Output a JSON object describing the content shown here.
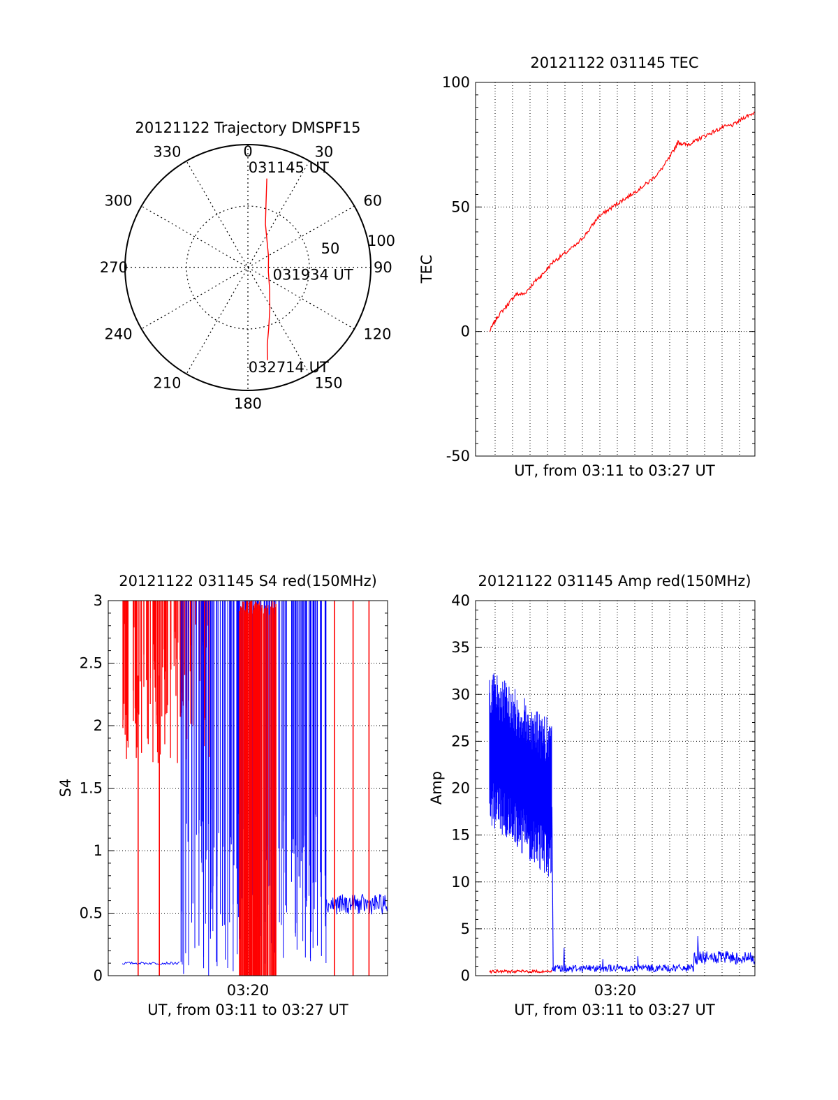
{
  "chart_data": [
    {
      "type": "polar",
      "title": "20121122 Trajectory DMSPF15",
      "angle_ticks": [
        "0",
        "30",
        "60",
        "90",
        "120",
        "150",
        "180",
        "210",
        "240",
        "270",
        "300",
        "330"
      ],
      "radial_ticks": [
        "50",
        "100"
      ],
      "radial_range": [
        0,
        100
      ],
      "grid": true,
      "series": [
        {
          "color": "#ff0000",
          "points": [
            {
              "az": 12,
              "r": 74
            },
            {
              "az": 14,
              "r": 62
            },
            {
              "az": 17,
              "r": 50
            },
            {
              "az": 22,
              "r": 38
            },
            {
              "az": 35,
              "r": 27
            },
            {
              "az": 62,
              "r": 19
            },
            {
              "az": 102,
              "r": 17
            },
            {
              "az": 135,
              "r": 25
            },
            {
              "az": 152,
              "r": 38
            },
            {
              "az": 161,
              "r": 52
            },
            {
              "az": 166,
              "r": 65
            },
            {
              "az": 168,
              "r": 77
            }
          ]
        }
      ],
      "annotations": [
        {
          "text": "031145 UT",
          "az": 15,
          "r": 84
        },
        {
          "text": "031934 UT",
          "az": 98,
          "r": 42
        },
        {
          "text": "032714 UT",
          "az": 165,
          "r": 84
        }
      ]
    },
    {
      "type": "line",
      "title": "20121122 031145 TEC",
      "xlabel": "UT, from 03:11 to 03:27 UT",
      "ylabel": "TEC",
      "xlim": [
        0,
        1
      ],
      "ylim": [
        -50,
        100
      ],
      "yticks": [
        "-50",
        "0",
        "50",
        "100"
      ],
      "xticks": [],
      "grid": true,
      "series": [
        {
          "color": "#ff0000",
          "x": [
            0.0,
            0.03,
            0.07,
            0.1,
            0.13,
            0.17,
            0.2,
            0.24,
            0.28,
            0.33,
            0.37,
            0.41,
            0.45,
            0.49,
            0.52,
            0.56,
            0.6,
            0.64,
            0.68,
            0.71,
            0.74,
            0.77,
            0.8,
            0.84,
            0.88,
            0.92,
            0.96,
            1.0
          ],
          "y": [
            0,
            6,
            11,
            15,
            15,
            20,
            23,
            28,
            31,
            35,
            40,
            46,
            49,
            52,
            54,
            57,
            60,
            64,
            70,
            76,
            75,
            76,
            78,
            80,
            82,
            83,
            86,
            88
          ]
        }
      ]
    },
    {
      "type": "line",
      "title": "20121122 031145 S4 red(150MHz)",
      "xlabel": "UT, from 03:11 to 03:27 UT",
      "ylabel": "S4",
      "xlim": [
        0,
        1
      ],
      "ylim": [
        0,
        3
      ],
      "yticks": [
        "0",
        "0.5",
        "1",
        "1.5",
        "2",
        "2.5",
        "3"
      ],
      "xticks": [
        {
          "x": 0.5,
          "label": "03:20"
        }
      ],
      "grid": true,
      "series": [
        {
          "color": "#0000ff",
          "x": [
            0.0,
            0.08,
            0.22
          ],
          "y": [
            0.1,
            0.1,
            0.12
          ]
        },
        {
          "color": "#0000ff",
          "x": [
            0.23,
            0.3,
            0.5
          ],
          "y": [
            1.5,
            1.2,
            0.9
          ]
        },
        {
          "color": "#0000ff",
          "x": [
            0.75,
            0.85,
            1.0
          ],
          "y": [
            0.58,
            0.55,
            0.56
          ]
        },
        {
          "color": "#ff0000",
          "x": [
            0.0,
            0.1,
            0.2,
            0.32
          ],
          "y": [
            2.6,
            2.5,
            2.45,
            2.6
          ]
        }
      ]
    },
    {
      "type": "line",
      "title": "20121122 031145 Amp red(150MHz)",
      "xlabel": "UT, from 03:11 to 03:27 UT",
      "ylabel": "Amp",
      "xlim": [
        0,
        1
      ],
      "ylim": [
        0,
        40
      ],
      "yticks": [
        "0",
        "5",
        "10",
        "15",
        "20",
        "25",
        "30",
        "35",
        "40"
      ],
      "xticks": [
        {
          "x": 0.5,
          "label": "03:20"
        }
      ],
      "grid": true,
      "series": [
        {
          "color": "#0000ff",
          "x": [
            0.0,
            0.05,
            0.1,
            0.15,
            0.2,
            0.235
          ],
          "y": [
            25,
            24,
            22,
            21,
            20,
            19
          ]
        },
        {
          "color": "#0000ff",
          "x": [
            0.24,
            0.4,
            0.6,
            0.75,
            0.8,
            1.0
          ],
          "y": [
            0.6,
            0.5,
            0.4,
            0.5,
            1.2,
            1.3
          ]
        },
        {
          "color": "#ff0000",
          "x": [
            0.0,
            0.235
          ],
          "y": [
            0.3,
            0.3
          ]
        }
      ]
    }
  ]
}
